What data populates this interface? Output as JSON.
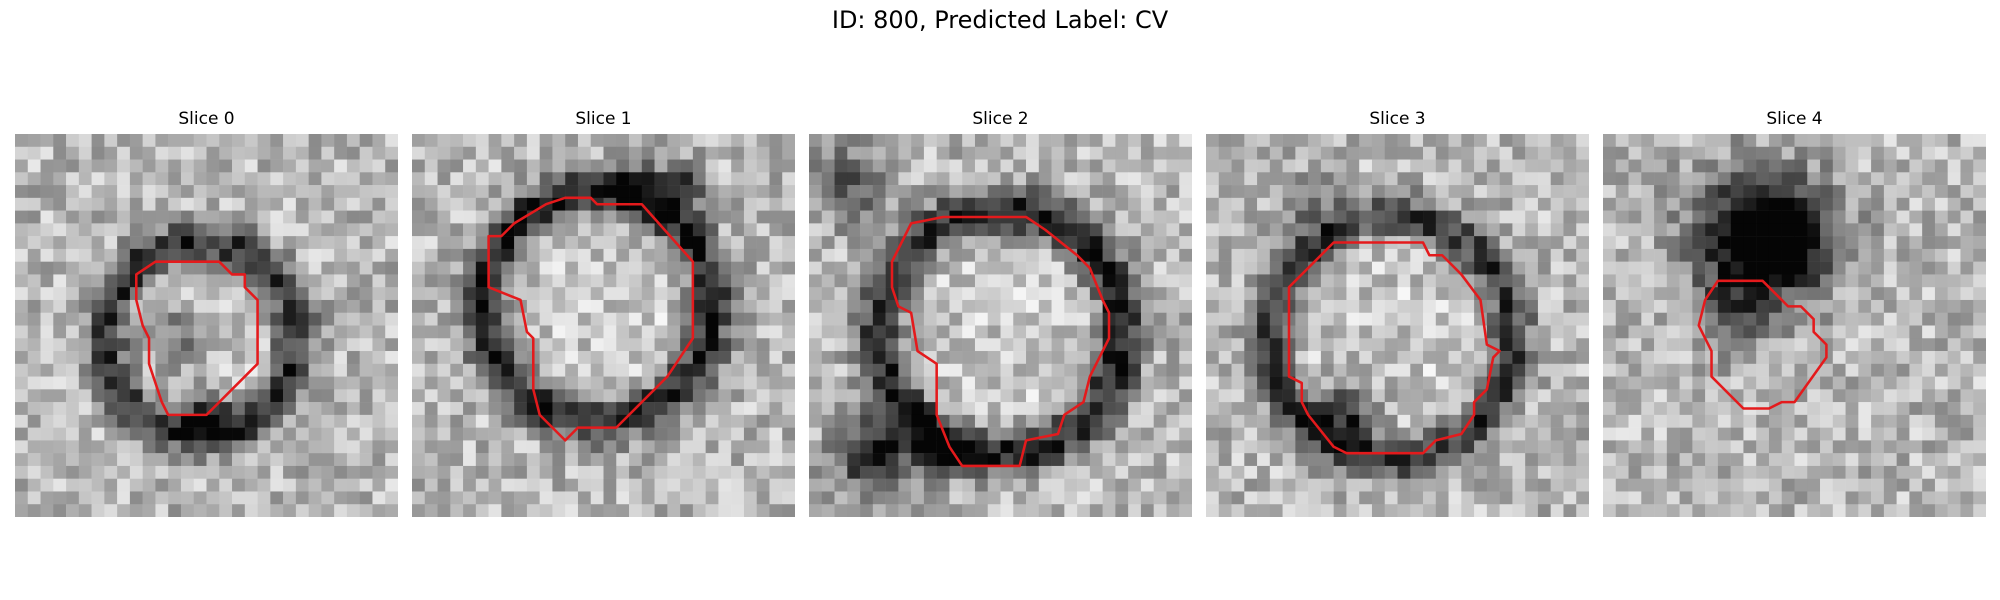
{
  "figure": {
    "title": "ID: 800, Predicted Label: CV"
  },
  "panels": [
    {
      "title": "Slice 0",
      "description": "grayscale noisy micrograph patch with dark ring, red segmentation outline"
    },
    {
      "title": "Slice 1",
      "description": "grayscale noisy micrograph patch with dark ring, red segmentation outline"
    },
    {
      "title": "Slice 2",
      "description": "grayscale noisy micrograph patch with dark ring, red segmentation outline"
    },
    {
      "title": "Slice 3",
      "description": "grayscale noisy micrograph patch with dark ring, red segmentation outline"
    },
    {
      "title": "Slice 4",
      "description": "grayscale noisy micrograph patch with dark blob, red segmentation outline"
    }
  ],
  "colors": {
    "contour": "#e41a1c",
    "background": "#ffffff"
  }
}
